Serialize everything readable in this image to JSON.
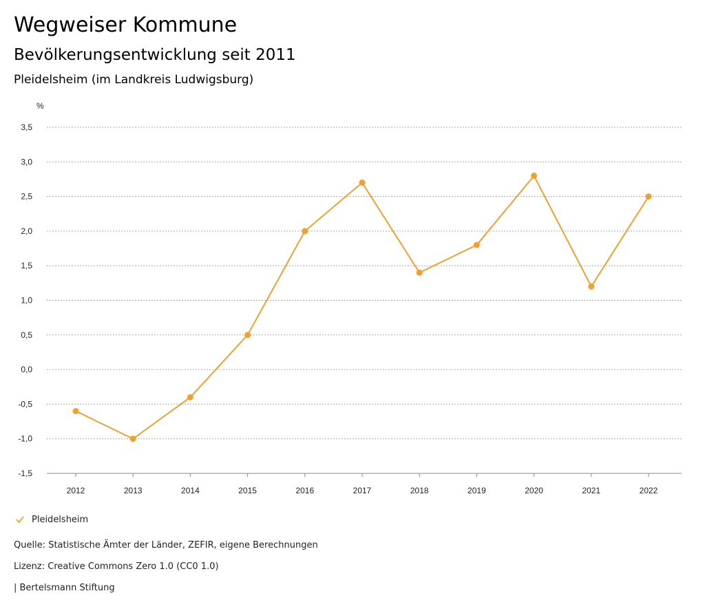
{
  "header": {
    "title": "Wegweiser Kommune",
    "subtitle": "Bevölkerungsentwicklung seit 2011",
    "region": "Pleidelsheim (im Landkreis Ludwigsburg)"
  },
  "chart_data": {
    "type": "line",
    "unit_label": "%",
    "categories": [
      "2012",
      "2013",
      "2014",
      "2015",
      "2016",
      "2017",
      "2018",
      "2019",
      "2020",
      "2021",
      "2022"
    ],
    "series": [
      {
        "name": "Pleidelsheim",
        "color": "#F0A030",
        "values": [
          -0.6,
          -1.0,
          -0.4,
          0.5,
          2.0,
          2.7,
          1.4,
          1.8,
          2.8,
          1.2,
          2.5
        ]
      }
    ],
    "yticks": [
      "3,5",
      "3,0",
      "2,5",
      "2,0",
      "1,5",
      "1,0",
      "0,5",
      "0,0",
      "-0,5",
      "-1,0",
      "-1,5"
    ],
    "ytick_values": [
      3.5,
      3.0,
      2.5,
      2.0,
      1.5,
      1.0,
      0.5,
      0.0,
      -0.5,
      -1.0,
      -1.5
    ],
    "ylim": [
      -1.5,
      3.5
    ],
    "grid": true,
    "legend_position": "bottom-left"
  },
  "legend": {
    "label": "Pleidelsheim",
    "icon": "check-icon"
  },
  "footer": {
    "source": "Quelle: Statistische Ämter der Länder, ZEFIR, eigene Berechnungen",
    "license": "Lizenz: Creative Commons Zero 1.0 (CC0 1.0)",
    "publisher": "| Bertelsmann Stiftung"
  }
}
